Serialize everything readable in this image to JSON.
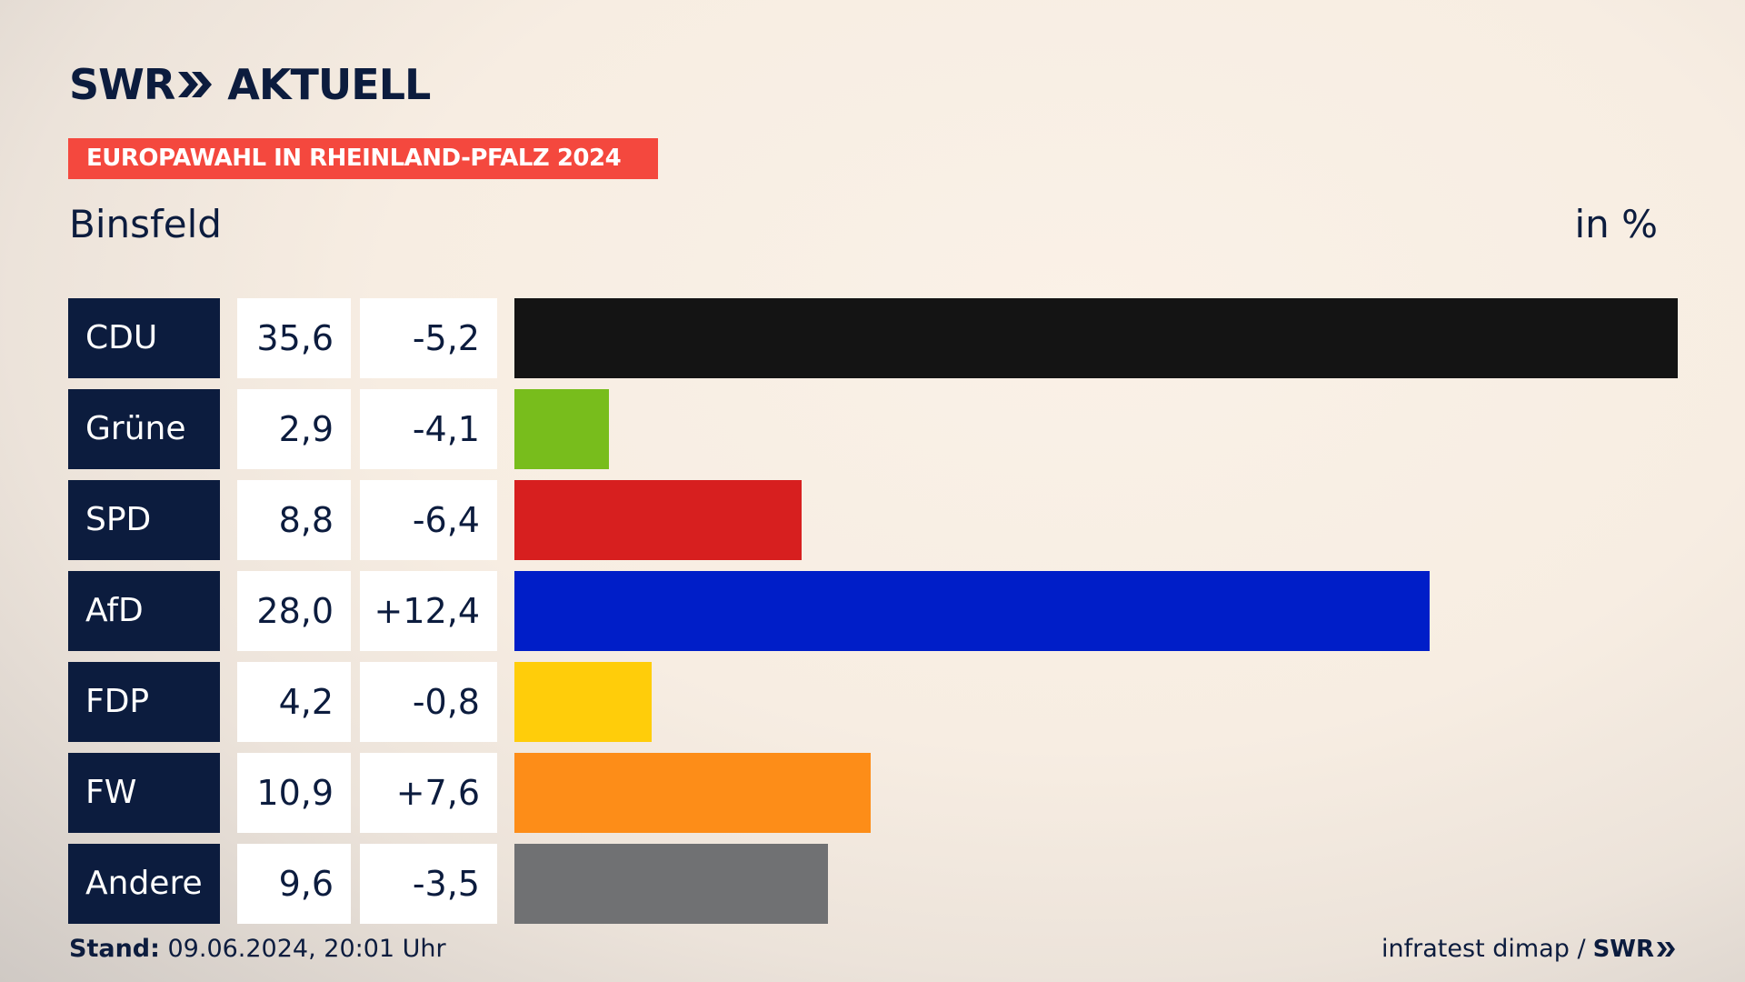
{
  "header": {
    "brand_swr": "SWR",
    "brand_aktuell": "AKTUELL",
    "election": "EUROPAWAHL IN RHEINLAND-PFALZ 2024",
    "place": "Binsfeld",
    "unit": "in %"
  },
  "colors": {
    "navy": "#0c1c3e",
    "banner_red": "#f4483e"
  },
  "chart_data": {
    "type": "bar",
    "orientation": "horizontal",
    "categories": [
      "CDU",
      "Grüne",
      "SPD",
      "AfD",
      "FDP",
      "FW",
      "Andere"
    ],
    "values": [
      35.6,
      2.9,
      8.8,
      28.0,
      4.2,
      10.9,
      9.6
    ],
    "value_labels": [
      "35,6",
      "2,9",
      "8,8",
      "28,0",
      "4,2",
      "10,9",
      "9,6"
    ],
    "diff_labels": [
      "-5,2",
      "-4,1",
      "-6,4",
      "+12,4",
      "-0,8",
      "+7,6",
      "-3,5"
    ],
    "diffs": [
      -5.2,
      -4.1,
      -6.4,
      12.4,
      -0.8,
      7.6,
      -3.5
    ],
    "colors": [
      "#141414",
      "#78bd1c",
      "#d71f1f",
      "#001ec8",
      "#ffcd0a",
      "#fd8d18",
      "#707173"
    ],
    "xlim": [
      0,
      35.6
    ],
    "unit": "in %",
    "grid": false,
    "legend": "none"
  },
  "footer": {
    "stand_label": "Stand:",
    "stand_value": " 09.06.2024, 20:01 Uhr",
    "source": "infratest dimap /",
    "source_brand": "SWR"
  }
}
